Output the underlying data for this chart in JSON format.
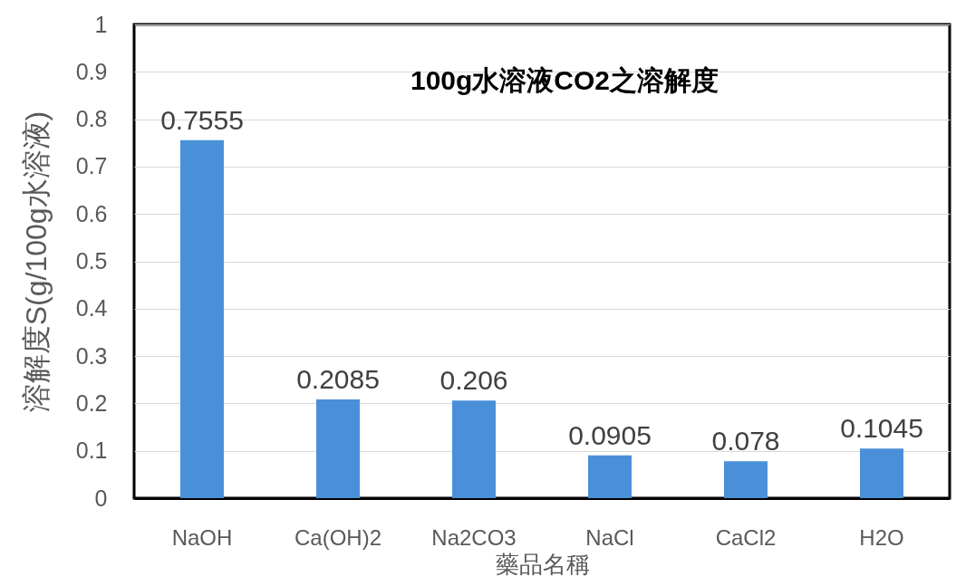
{
  "chart_data": {
    "type": "bar",
    "title": "100g水溶液CO2之溶解度",
    "xlabel": "藥品名稱",
    "ylabel": "溶解度S(g/100g水溶液)",
    "categories": [
      "NaOH",
      "Ca(OH)2",
      "Na2CO3",
      "NaCl",
      "CaCl2",
      "H2O"
    ],
    "values": [
      0.7555,
      0.2085,
      0.206,
      0.0905,
      0.078,
      0.1045
    ],
    "color": "#4a90d9",
    "ylim": [
      0,
      1
    ],
    "yticks": [
      0,
      0.1,
      0.2,
      0.3,
      0.4,
      0.5,
      0.6,
      0.7,
      0.8,
      0.9,
      1
    ],
    "grid": "y",
    "data_labels": true
  }
}
